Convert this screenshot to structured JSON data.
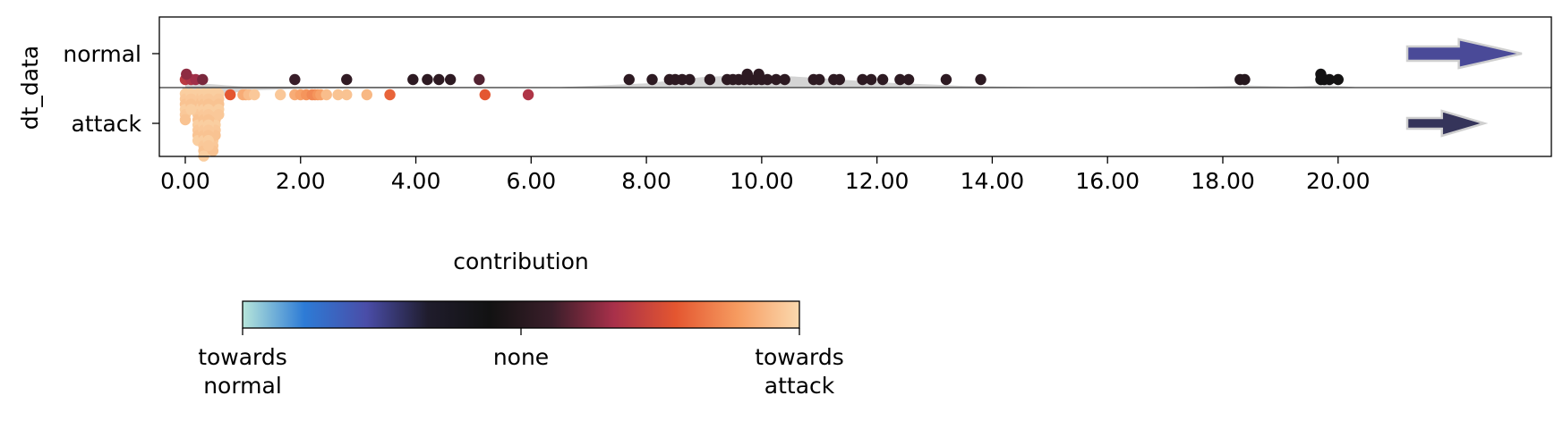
{
  "chart_data": {
    "type": "scatter",
    "subtype": "strip-plot with split violin",
    "ylabel": "dt_data",
    "categories": [
      "normal",
      "attack"
    ],
    "xticks": [
      "0.00",
      "2.00",
      "4.00",
      "6.00",
      "8.00",
      "10.00",
      "12.00",
      "14.00",
      "16.00",
      "18.00",
      "20.00"
    ],
    "xlim": [
      -0.45,
      23.7
    ],
    "grid": false,
    "series": [
      {
        "name": "normal",
        "points": [
          {
            "x": 0.0,
            "c": 0.7
          },
          {
            "x": 0.1,
            "c": 0.68
          },
          {
            "x": 0.18,
            "c": 0.66
          },
          {
            "x": 0.3,
            "c": 0.62
          },
          {
            "x": 1.9,
            "c": 0.55
          },
          {
            "x": 2.8,
            "c": 0.53
          },
          {
            "x": 3.95,
            "c": 0.52
          },
          {
            "x": 4.2,
            "c": 0.52
          },
          {
            "x": 4.4,
            "c": 0.52
          },
          {
            "x": 4.6,
            "c": 0.52
          },
          {
            "x": 5.1,
            "c": 0.58
          },
          {
            "x": 7.7,
            "c": 0.52
          },
          {
            "x": 8.1,
            "c": 0.52
          },
          {
            "x": 8.4,
            "c": 0.52
          },
          {
            "x": 8.5,
            "c": 0.52
          },
          {
            "x": 8.62,
            "c": 0.52
          },
          {
            "x": 8.75,
            "c": 0.52
          },
          {
            "x": 9.1,
            "c": 0.52
          },
          {
            "x": 9.4,
            "c": 0.52
          },
          {
            "x": 9.5,
            "c": 0.52
          },
          {
            "x": 9.6,
            "c": 0.52
          },
          {
            "x": 9.7,
            "c": 0.52
          },
          {
            "x": 9.8,
            "c": 0.52
          },
          {
            "x": 9.9,
            "c": 0.52
          },
          {
            "x": 10.0,
            "c": 0.52
          },
          {
            "x": 10.1,
            "c": 0.52
          },
          {
            "x": 10.25,
            "c": 0.52
          },
          {
            "x": 10.4,
            "c": 0.52
          },
          {
            "x": 10.9,
            "c": 0.52
          },
          {
            "x": 11.0,
            "c": 0.52
          },
          {
            "x": 11.25,
            "c": 0.52
          },
          {
            "x": 11.35,
            "c": 0.52
          },
          {
            "x": 11.75,
            "c": 0.52
          },
          {
            "x": 11.9,
            "c": 0.52
          },
          {
            "x": 12.1,
            "c": 0.52
          },
          {
            "x": 12.4,
            "c": 0.52
          },
          {
            "x": 12.55,
            "c": 0.52
          },
          {
            "x": 13.2,
            "c": 0.52
          },
          {
            "x": 13.8,
            "c": 0.52
          },
          {
            "x": 18.3,
            "c": 0.5
          },
          {
            "x": 18.38,
            "c": 0.5
          },
          {
            "x": 19.7,
            "c": 0.44
          },
          {
            "x": 19.76,
            "c": 0.44
          },
          {
            "x": 19.85,
            "c": 0.44
          },
          {
            "x": 20.0,
            "c": 0.45
          }
        ],
        "point_up": [
          {
            "x": 0.02,
            "c": 0.64
          },
          {
            "x": 9.95,
            "c": 0.52
          },
          {
            "x": 9.75,
            "c": 0.52
          },
          {
            "x": 19.7,
            "c": 0.44
          }
        ]
      },
      {
        "name": "attack",
        "points": [
          {
            "x": 0.78,
            "c": 0.78
          },
          {
            "x": 1.0,
            "c": 0.92
          },
          {
            "x": 1.05,
            "c": 0.92
          },
          {
            "x": 1.1,
            "c": 0.95
          },
          {
            "x": 1.2,
            "c": 0.97
          },
          {
            "x": 1.65,
            "c": 0.97
          },
          {
            "x": 1.9,
            "c": 0.92
          },
          {
            "x": 2.0,
            "c": 0.9
          },
          {
            "x": 2.1,
            "c": 0.88
          },
          {
            "x": 2.2,
            "c": 0.86
          },
          {
            "x": 2.25,
            "c": 0.86
          },
          {
            "x": 2.3,
            "c": 0.88
          },
          {
            "x": 2.35,
            "c": 0.9
          },
          {
            "x": 2.45,
            "c": 0.95
          },
          {
            "x": 2.65,
            "c": 0.96
          },
          {
            "x": 2.8,
            "c": 0.96
          },
          {
            "x": 3.15,
            "c": 0.94
          },
          {
            "x": 3.55,
            "c": 0.8
          },
          {
            "x": 5.2,
            "c": 0.78
          },
          {
            "x": 5.95,
            "c": 0.68
          }
        ],
        "cluster": {
          "xs": [
            0.0,
            0.3,
            0.5
          ],
          "c": 0.98
        }
      }
    ],
    "violins": {
      "normal": [
        {
          "x": 0,
          "d": 0.25
        },
        {
          "x": 0.5,
          "d": 0.15
        },
        {
          "x": 1,
          "d": 0.05
        },
        {
          "x": 6.5,
          "d": 0.02
        },
        {
          "x": 8,
          "d": 0.2
        },
        {
          "x": 9,
          "d": 0.5
        },
        {
          "x": 10,
          "d": 0.6
        },
        {
          "x": 11,
          "d": 0.45
        },
        {
          "x": 12,
          "d": 0.25
        },
        {
          "x": 13.5,
          "d": 0.08
        },
        {
          "x": 15,
          "d": 0.01
        },
        {
          "x": 17.5,
          "d": 0.03
        },
        {
          "x": 18.4,
          "d": 0.1
        },
        {
          "x": 19.2,
          "d": 0.04
        },
        {
          "x": 19.8,
          "d": 0.12
        },
        {
          "x": 20.3,
          "d": 0.02
        }
      ],
      "attack": [
        {
          "x": -0.05,
          "d": 0.1
        },
        {
          "x": 0.1,
          "d": 0.4
        },
        {
          "x": 0.25,
          "d": 0.95
        },
        {
          "x": 0.4,
          "d": 0.7
        },
        {
          "x": 0.6,
          "d": 0.25
        },
        {
          "x": 1.0,
          "d": 0.08
        },
        {
          "x": 2.3,
          "d": 0.02
        },
        {
          "x": 4.5,
          "d": 0.0
        }
      ]
    },
    "arrows": [
      {
        "row": "normal",
        "size": "large",
        "color": "#4a4a98"
      },
      {
        "row": "attack",
        "size": "medium",
        "color": "#35345a"
      }
    ],
    "colorbar": {
      "title": "contribution",
      "labels": [
        "towards\nnormal",
        "none",
        "towards\nattack"
      ],
      "stops": [
        "#b7e6da",
        "#2d7bd6",
        "#4a4da8",
        "#1f1c2c",
        "#121212",
        "#3a1e2a",
        "#a8304a",
        "#e45630",
        "#f69b60",
        "#fbd9ae"
      ]
    }
  }
}
